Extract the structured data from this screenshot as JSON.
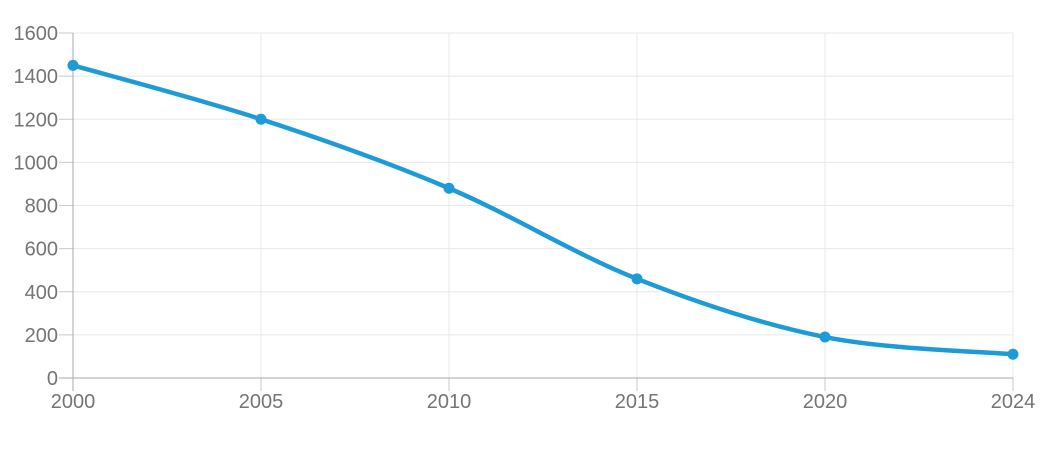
{
  "chart_data": {
    "type": "line",
    "title": "",
    "xlabel": "",
    "ylabel": "",
    "categories": [
      "2000",
      "2005",
      "2010",
      "2015",
      "2020",
      "2024"
    ],
    "series": [
      {
        "name": "series-1",
        "values": [
          1450,
          1200,
          880,
          460,
          190,
          110
        ]
      }
    ],
    "y_ticks": [
      0,
      200,
      400,
      600,
      800,
      1000,
      1200,
      1400,
      1600
    ],
    "ylim": [
      0,
      1600
    ],
    "x_axis_type": "category",
    "grid": true,
    "legend": false,
    "smooth_line": true,
    "point_markers": true,
    "colors": {
      "line": "#1E9BD7",
      "point": "#1E9BD7",
      "gridline": "#e8e8e8",
      "tick_mark": "#c9c9c9",
      "axis_border": "#a8a8a8",
      "tick_label": "#757575",
      "background": "#ffffff"
    }
  }
}
